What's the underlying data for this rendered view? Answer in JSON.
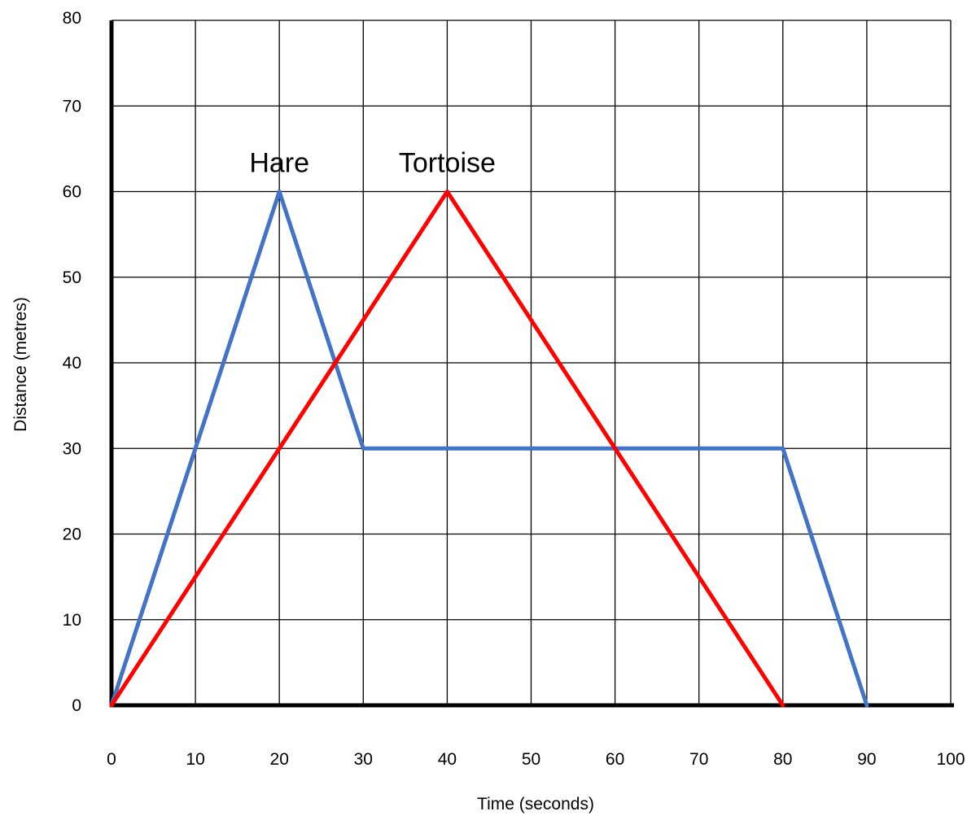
{
  "chart_data": {
    "type": "line",
    "xlabel": "Time (seconds)",
    "ylabel": "Distance (metres)",
    "xlim": [
      0,
      100
    ],
    "ylim": [
      0,
      80
    ],
    "x_ticks": [
      "0",
      "10",
      "20",
      "30",
      "40",
      "50",
      "60",
      "70",
      "80",
      "90",
      "100"
    ],
    "y_ticks": [
      "0",
      "10",
      "20",
      "30",
      "40",
      "50",
      "60",
      "70",
      "80"
    ],
    "grid": true,
    "series": [
      {
        "name": "Hare",
        "color": "#4472C4",
        "points": [
          [
            0,
            0
          ],
          [
            20,
            60
          ],
          [
            30,
            30
          ],
          [
            80,
            30
          ],
          [
            90,
            0
          ]
        ]
      },
      {
        "name": "Tortoise",
        "color": "#FF0000",
        "points": [
          [
            0,
            0
          ],
          [
            40,
            60
          ],
          [
            80,
            0
          ]
        ]
      }
    ]
  }
}
